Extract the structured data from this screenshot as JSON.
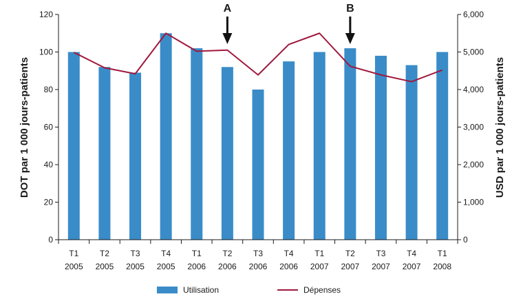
{
  "chart_data": {
    "type": "bar",
    "categories": [
      [
        "T1",
        "2005"
      ],
      [
        "T2",
        "2005"
      ],
      [
        "T3",
        "2005"
      ],
      [
        "T4",
        "2005"
      ],
      [
        "T1",
        "2006"
      ],
      [
        "T2",
        "2006"
      ],
      [
        "T3",
        "2006"
      ],
      [
        "T4",
        "2006"
      ],
      [
        "T1",
        "2007"
      ],
      [
        "T2",
        "2007"
      ],
      [
        "T3",
        "2007"
      ],
      [
        "T4",
        "2007"
      ],
      [
        "T1",
        "2008"
      ]
    ],
    "series": [
      {
        "name": "Utilisation",
        "type": "bar",
        "axis": "left",
        "color": "#3a8cc8",
        "values": [
          100,
          92,
          89,
          110,
          102,
          92,
          80,
          95,
          100,
          102,
          98,
          93,
          100
        ]
      },
      {
        "name": "Dépenses",
        "type": "line",
        "axis": "right",
        "color": "#a0183c",
        "values": [
          4990,
          4580,
          4420,
          5500,
          5020,
          5050,
          4390,
          5200,
          5500,
          4620,
          4390,
          4210,
          4520
        ]
      }
    ],
    "ylabel": "DOT par 1 000 jours-patients",
    "y2label": "USD par 1 000 jours-patients",
    "ylim": [
      0,
      120
    ],
    "yticks": [
      "0",
      "20",
      "40",
      "60",
      "80",
      "100",
      "120"
    ],
    "y2lim": [
      0,
      6000
    ],
    "y2ticks": [
      "0",
      "1,000",
      "2,000",
      "3,000",
      "4,000",
      "5,000",
      "6,000"
    ],
    "annotations": [
      {
        "label": "A",
        "category_index": 5
      },
      {
        "label": "B",
        "category_index": 9
      }
    ],
    "legend_position": "bottom",
    "grid": false
  }
}
